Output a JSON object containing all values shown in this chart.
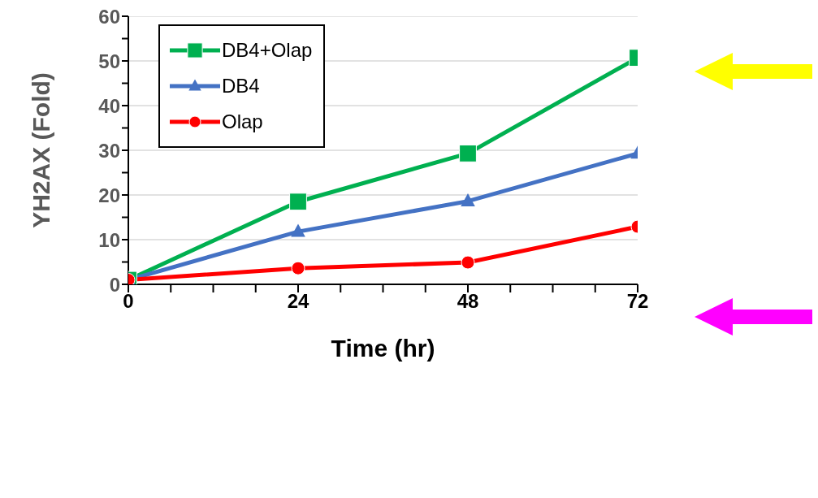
{
  "chart_data": {
    "type": "line",
    "xlabel": "Time (hr)",
    "ylabel": "YH2AX (Fold)",
    "x": [
      0,
      24,
      48,
      72
    ],
    "series": [
      {
        "name": "DB4+Olap",
        "color": "#00b050",
        "marker": "square",
        "values": [
          1,
          18.5,
          29.3,
          50.7
        ]
      },
      {
        "name": "DB4",
        "color": "#4472c4",
        "marker": "triangle",
        "values": [
          1,
          11.8,
          18.6,
          29.3
        ]
      },
      {
        "name": "Olap",
        "color": "#ff0000",
        "marker": "circle",
        "values": [
          1,
          3.6,
          4.9,
          12.9
        ]
      }
    ],
    "xlim": [
      0,
      72
    ],
    "xticks": [
      0,
      {
        "value": 6,
        "label": null
      },
      {
        "value": 12,
        "label": null
      },
      {
        "value": 18,
        "label": null
      },
      24,
      {
        "value": 30,
        "label": null
      },
      {
        "value": 36,
        "label": null
      },
      {
        "value": 42,
        "label": null
      },
      48,
      {
        "value": 54,
        "label": null
      },
      {
        "value": 60,
        "label": null
      },
      {
        "value": 66,
        "label": null
      },
      72
    ],
    "ylim": [
      0,
      60
    ],
    "yticks": [
      0,
      {
        "value": 5,
        "label": null
      },
      10,
      {
        "value": 15,
        "label": null
      },
      20,
      {
        "value": 25,
        "label": null
      },
      30,
      {
        "value": 35,
        "label": null
      },
      40,
      {
        "value": 45,
        "label": null
      },
      50,
      {
        "value": 55,
        "label": null
      },
      60
    ],
    "grid": "y",
    "legend": "top left",
    "line_style": "solid"
  }
}
